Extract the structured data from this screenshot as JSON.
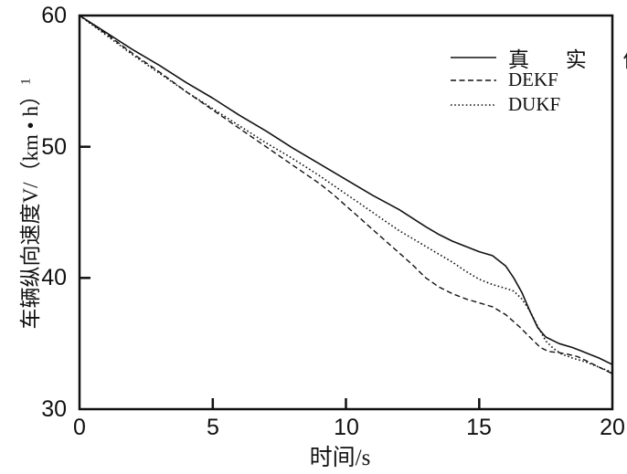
{
  "chart_data": {
    "type": "line",
    "title": "",
    "xlabel": "时间/s",
    "ylabel_main": "车辆纵向速度V/（km • h）",
    "ylabel_sup": "1",
    "xlim": [
      0,
      20
    ],
    "ylim": [
      30,
      60
    ],
    "xticks": [
      "0",
      "5",
      "10",
      "15",
      "20"
    ],
    "yticks": [
      "60",
      "50",
      "40",
      "30"
    ],
    "grid": false,
    "legend_position": "upper right",
    "line_color": "#111111",
    "series": [
      {
        "name": "真 实 值",
        "id": "true-value",
        "style": "solid",
        "points": [
          [
            0,
            60
          ],
          [
            1,
            58.7
          ],
          [
            2,
            57.4
          ],
          [
            3,
            56.2
          ],
          [
            4,
            54.9
          ],
          [
            5,
            53.7
          ],
          [
            6,
            52.4
          ],
          [
            7,
            51.2
          ],
          [
            8,
            49.9
          ],
          [
            9,
            48.7
          ],
          [
            10,
            47.5
          ],
          [
            11,
            46.3
          ],
          [
            12,
            45.2
          ],
          [
            13,
            43.9
          ],
          [
            13.5,
            43.3
          ],
          [
            14,
            42.8
          ],
          [
            14.5,
            42.4
          ],
          [
            15,
            42
          ],
          [
            15.5,
            41.7
          ],
          [
            16,
            40.9
          ],
          [
            16.3,
            40
          ],
          [
            16.6,
            38.9
          ],
          [
            16.9,
            37.5
          ],
          [
            17.2,
            36.2
          ],
          [
            17.5,
            35.5
          ],
          [
            17.8,
            35.2
          ],
          [
            18,
            35
          ],
          [
            18.5,
            34.7
          ],
          [
            19,
            34.3
          ],
          [
            19.5,
            33.9
          ],
          [
            20,
            33.4
          ]
        ]
      },
      {
        "name": "DEKF",
        "id": "dekf",
        "style": "dashed",
        "points": [
          [
            0,
            60
          ],
          [
            1,
            58.6
          ],
          [
            2,
            57.1
          ],
          [
            3,
            55.7
          ],
          [
            4,
            54.2
          ],
          [
            5,
            52.8
          ],
          [
            6,
            51.4
          ],
          [
            7,
            50
          ],
          [
            8,
            48.6
          ],
          [
            9,
            47.2
          ],
          [
            9.5,
            46.4
          ],
          [
            10,
            45.5
          ],
          [
            10.5,
            44.6
          ],
          [
            11,
            43.7
          ],
          [
            11.5,
            42.8
          ],
          [
            12,
            41.9
          ],
          [
            12.5,
            41
          ],
          [
            13,
            40
          ],
          [
            13.5,
            39.3
          ],
          [
            14,
            38.8
          ],
          [
            14.5,
            38.4
          ],
          [
            15,
            38.1
          ],
          [
            15.5,
            37.8
          ],
          [
            16,
            37.2
          ],
          [
            16.5,
            36.3
          ],
          [
            17,
            35.3
          ],
          [
            17.3,
            34.7
          ],
          [
            17.6,
            34.4
          ],
          [
            18,
            34.3
          ],
          [
            18.3,
            34.2
          ],
          [
            18.7,
            34
          ],
          [
            19,
            33.7
          ],
          [
            19.5,
            33.2
          ],
          [
            20,
            32.7
          ]
        ]
      },
      {
        "name": "DUKF",
        "id": "dukf",
        "style": "dotted",
        "points": [
          [
            0,
            60
          ],
          [
            1,
            58.5
          ],
          [
            2,
            57
          ],
          [
            3,
            55.6
          ],
          [
            4,
            54.2
          ],
          [
            5,
            52.9
          ],
          [
            6,
            51.6
          ],
          [
            7,
            50.3
          ],
          [
            8,
            49.1
          ],
          [
            9,
            47.8
          ],
          [
            10,
            46.4
          ],
          [
            10.5,
            45.7
          ],
          [
            11,
            45
          ],
          [
            11.5,
            44.3
          ],
          [
            12,
            43.6
          ],
          [
            12.5,
            43
          ],
          [
            13,
            42.4
          ],
          [
            13.5,
            41.8
          ],
          [
            14,
            41.2
          ],
          [
            14.5,
            40.5
          ],
          [
            15,
            39.9
          ],
          [
            15.5,
            39.5
          ],
          [
            16,
            39.2
          ],
          [
            16.3,
            39
          ],
          [
            16.6,
            38.4
          ],
          [
            16.9,
            37.5
          ],
          [
            17.2,
            36.3
          ],
          [
            17.5,
            35.2
          ],
          [
            17.8,
            34.6
          ],
          [
            18.1,
            34.2
          ],
          [
            18.5,
            33.9
          ],
          [
            19,
            33.6
          ],
          [
            19.5,
            33.2
          ],
          [
            20,
            32.8
          ]
        ]
      }
    ]
  }
}
